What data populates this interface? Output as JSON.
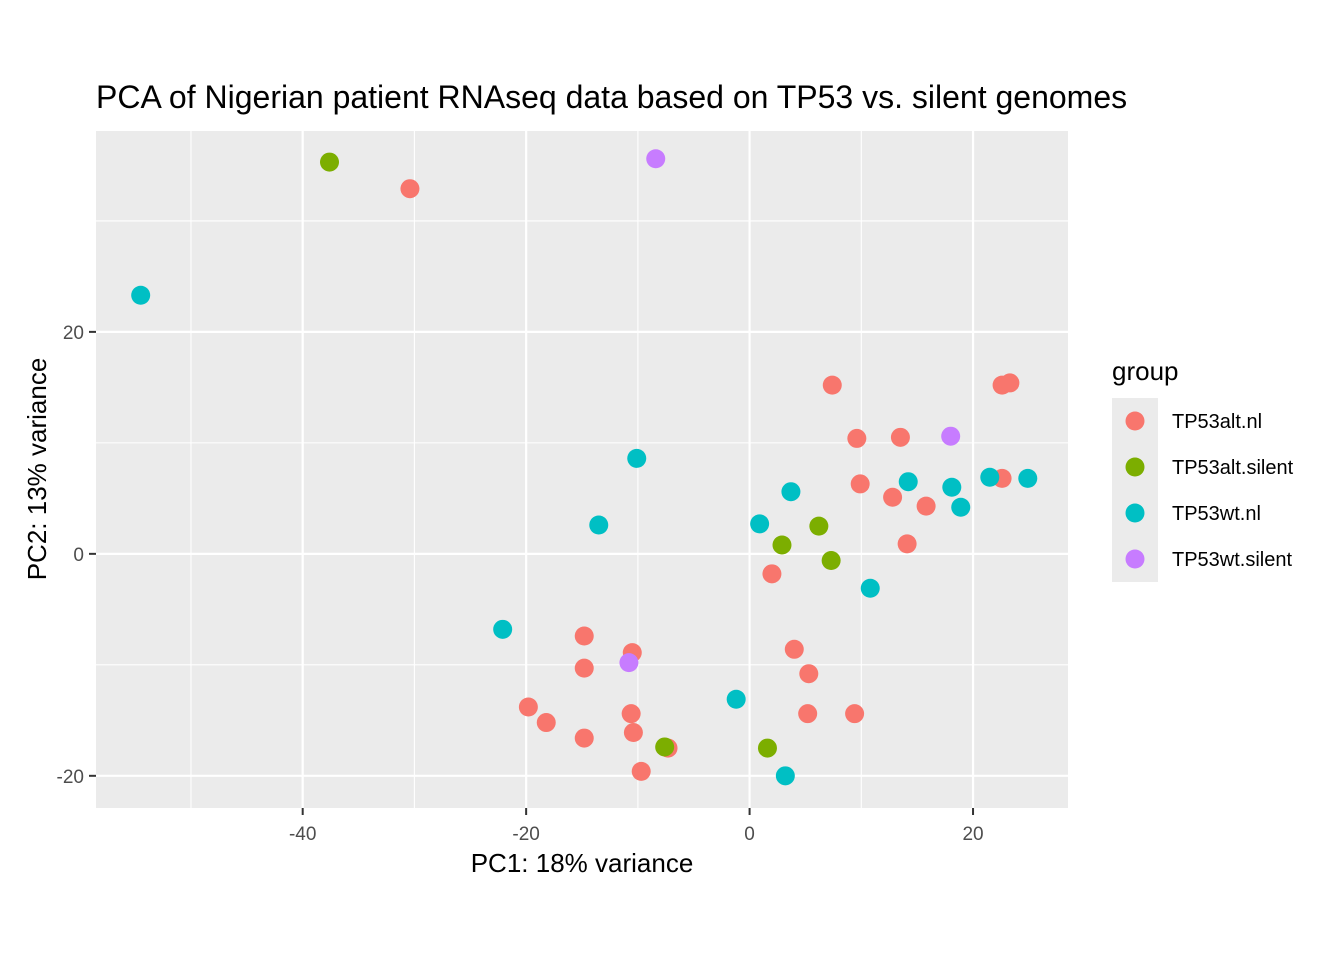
{
  "chart_data": {
    "type": "scatter",
    "title": "PCA of Nigerian patient RNAseq data based on TP53 vs. silent genomes",
    "xlabel": "PC1: 18% variance",
    "ylabel": "PC2: 13% variance",
    "xlim": [
      -58.5,
      28.5
    ],
    "ylim": [
      -22.9,
      38.1
    ],
    "x_ticks": [
      -40,
      -20,
      0,
      20
    ],
    "y_ticks": [
      -20,
      0,
      20
    ],
    "x_tick_labels": [
      "-40",
      "-20",
      "0",
      "20"
    ],
    "y_tick_labels": [
      "-20",
      "0",
      "20"
    ],
    "grid": true,
    "legend": {
      "title": "group",
      "position": "right"
    },
    "series": [
      {
        "name": "TP53alt.nl",
        "color": "#F8766D",
        "points": [
          [
            -30.4,
            32.9
          ],
          [
            7.4,
            15.2
          ],
          [
            22.6,
            15.2
          ],
          [
            23.3,
            15.4
          ],
          [
            9.6,
            10.4
          ],
          [
            13.5,
            10.5
          ],
          [
            22.6,
            6.8
          ],
          [
            9.9,
            6.3
          ],
          [
            12.8,
            5.1
          ],
          [
            15.8,
            4.3
          ],
          [
            14.1,
            0.9
          ],
          [
            2.0,
            -1.8
          ],
          [
            -14.8,
            -7.4
          ],
          [
            -10.5,
            -8.9
          ],
          [
            -14.8,
            -10.3
          ],
          [
            4.0,
            -8.6
          ],
          [
            5.3,
            -10.8
          ],
          [
            -19.8,
            -13.8
          ],
          [
            -18.2,
            -15.2
          ],
          [
            -10.6,
            -14.4
          ],
          [
            5.2,
            -14.4
          ],
          [
            9.4,
            -14.4
          ],
          [
            -10.4,
            -16.1
          ],
          [
            -14.8,
            -16.6
          ],
          [
            -7.3,
            -17.5
          ],
          [
            -9.7,
            -19.6
          ]
        ]
      },
      {
        "name": "TP53alt.silent",
        "color": "#7CAE00",
        "points": [
          [
            -37.6,
            35.3
          ],
          [
            6.2,
            2.5
          ],
          [
            2.9,
            0.8
          ],
          [
            7.3,
            -0.6
          ],
          [
            -7.6,
            -17.4
          ],
          [
            1.6,
            -17.5
          ]
        ]
      },
      {
        "name": "TP53wt.nl",
        "color": "#00BFC4",
        "points": [
          [
            -54.5,
            23.3
          ],
          [
            -10.1,
            8.6
          ],
          [
            3.7,
            5.6
          ],
          [
            14.2,
            6.5
          ],
          [
            18.1,
            6.0
          ],
          [
            21.5,
            6.9
          ],
          [
            24.9,
            6.8
          ],
          [
            18.9,
            4.2
          ],
          [
            -13.5,
            2.6
          ],
          [
            0.9,
            2.7
          ],
          [
            10.8,
            -3.1
          ],
          [
            -22.1,
            -6.8
          ],
          [
            -1.2,
            -13.1
          ],
          [
            3.2,
            -20.0
          ]
        ]
      },
      {
        "name": "TP53wt.silent",
        "color": "#C77CFF",
        "points": [
          [
            -8.4,
            35.6
          ],
          [
            18.0,
            10.6
          ],
          [
            -10.8,
            -9.8
          ]
        ]
      }
    ]
  }
}
